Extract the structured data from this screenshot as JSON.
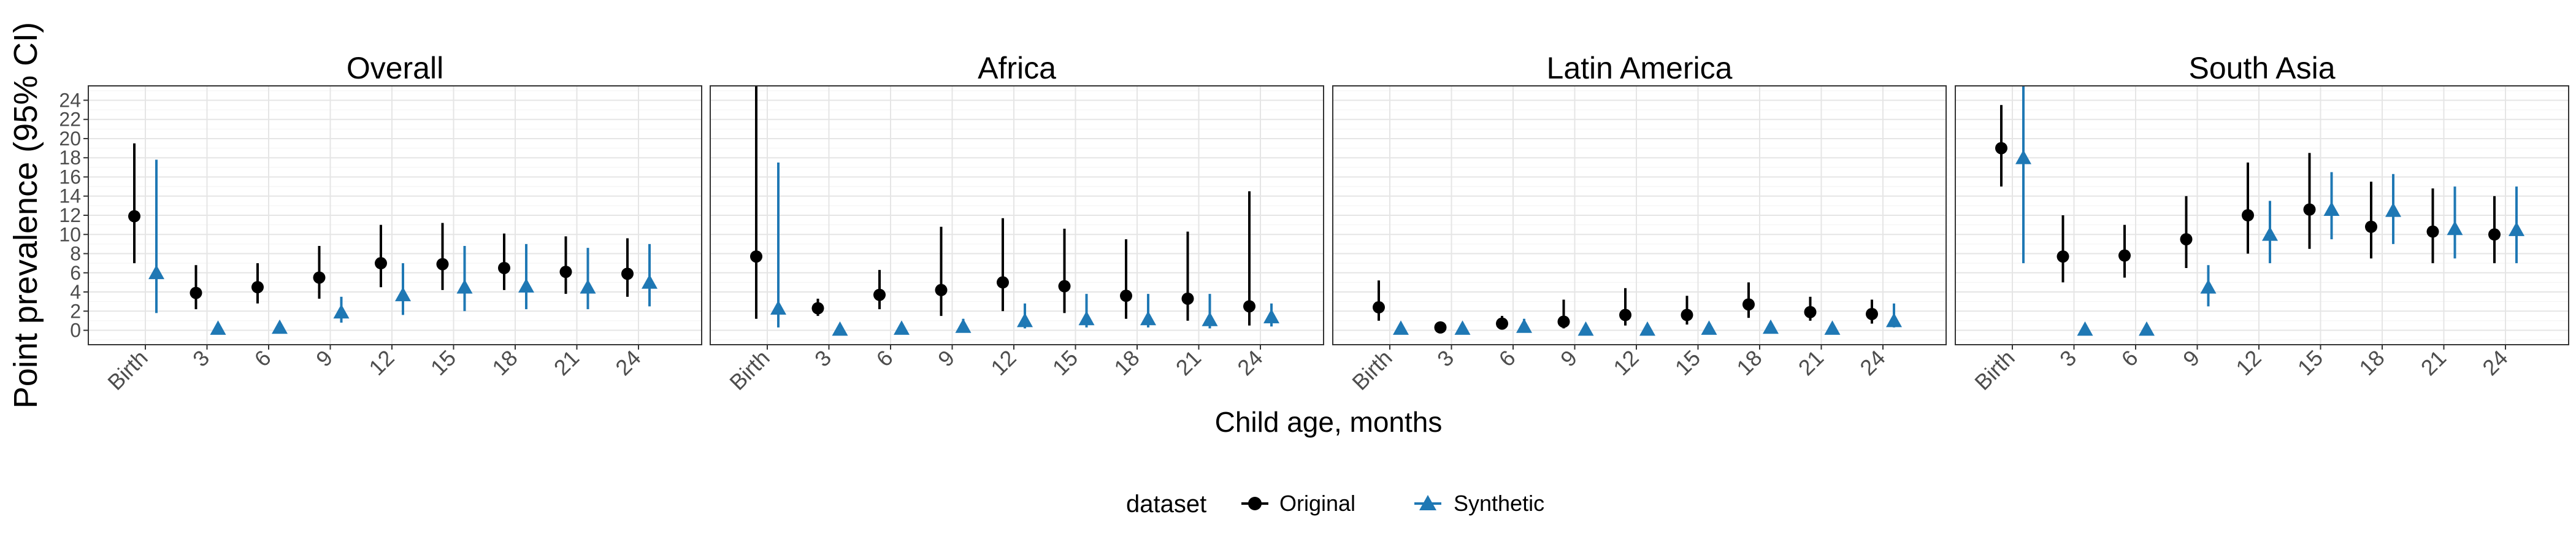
{
  "chart_data": {
    "type": "scatter",
    "ylabel": "Point prevalence (95% CI)",
    "xlabel": "Child age, months",
    "ylim": [
      -1.5,
      25.5
    ],
    "yticks": [
      0,
      2,
      4,
      6,
      8,
      10,
      12,
      14,
      16,
      18,
      20,
      22,
      24
    ],
    "categories": [
      "Birth",
      "3",
      "6",
      "9",
      "12",
      "15",
      "18",
      "21",
      "24"
    ],
    "grid": true,
    "legend": {
      "title": "dataset",
      "placement": "bottom",
      "entries": [
        {
          "name": "Original",
          "color": "#000000",
          "marker": "circle"
        },
        {
          "name": "Synthetic",
          "color": "#1f78b4",
          "marker": "triangle"
        }
      ]
    },
    "panels": [
      {
        "title": "Overall",
        "series": [
          {
            "name": "Original",
            "values": [
              11.9,
              3.9,
              4.5,
              5.5,
              7.0,
              6.9,
              6.5,
              6.1,
              5.9
            ],
            "lower": [
              7.0,
              2.2,
              2.8,
              3.3,
              4.5,
              4.2,
              4.2,
              3.8,
              3.5
            ],
            "upper": [
              19.5,
              6.8,
              7.0,
              8.8,
              11.0,
              11.2,
              10.1,
              9.8,
              9.6
            ]
          },
          {
            "name": "Synthetic",
            "values": [
              6.0,
              0.2,
              0.3,
              1.9,
              3.7,
              4.5,
              4.6,
              4.5,
              5.0
            ],
            "lower": [
              1.8,
              0.0,
              0.0,
              0.8,
              1.6,
              2.0,
              2.2,
              2.2,
              2.5
            ],
            "upper": [
              17.8,
              0.5,
              0.6,
              3.5,
              7.0,
              8.8,
              9.0,
              8.6,
              9.0
            ]
          }
        ]
      },
      {
        "title": "Africa",
        "series": [
          {
            "name": "Original",
            "values": [
              7.7,
              2.3,
              3.7,
              4.2,
              5.0,
              4.6,
              3.6,
              3.3,
              2.5
            ],
            "lower": [
              1.2,
              1.5,
              2.2,
              1.5,
              2.0,
              1.8,
              1.2,
              1.0,
              0.5
            ],
            "upper": [
              25.5,
              3.3,
              6.3,
              10.8,
              11.7,
              10.6,
              9.5,
              10.3,
              14.5
            ]
          },
          {
            "name": "Synthetic",
            "values": [
              2.3,
              0.1,
              0.2,
              0.4,
              1.0,
              1.2,
              1.2,
              1.1,
              1.4
            ],
            "lower": [
              0.3,
              0.0,
              0.0,
              0.0,
              0.2,
              0.3,
              0.3,
              0.2,
              0.4
            ],
            "upper": [
              17.5,
              0.4,
              0.6,
              1.2,
              2.8,
              3.8,
              3.8,
              3.8,
              2.8
            ]
          }
        ]
      },
      {
        "title": "Latin America",
        "series": [
          {
            "name": "Original",
            "values": [
              2.4,
              0.3,
              0.7,
              0.9,
              1.6,
              1.6,
              2.7,
              1.9,
              1.7
            ],
            "lower": [
              1.0,
              0.0,
              0.2,
              0.2,
              0.5,
              0.6,
              1.3,
              1.0,
              0.7
            ],
            "upper": [
              5.2,
              0.8,
              1.5,
              3.2,
              4.4,
              3.6,
              5.0,
              3.5,
              3.2
            ]
          },
          {
            "name": "Synthetic",
            "values": [
              0.2,
              0.2,
              0.4,
              0.1,
              0.1,
              0.2,
              0.3,
              0.2,
              1.0
            ],
            "lower": [
              0.0,
              0.0,
              0.0,
              0.0,
              0.0,
              0.0,
              0.0,
              0.0,
              0.3
            ],
            "upper": [
              0.8,
              0.6,
              1.2,
              0.5,
              0.6,
              0.6,
              0.8,
              0.8,
              2.8
            ]
          }
        ]
      },
      {
        "title": "South Asia",
        "series": [
          {
            "name": "Original",
            "values": [
              19.0,
              7.7,
              7.8,
              9.5,
              12.0,
              12.6,
              10.8,
              10.3,
              10.0
            ],
            "lower": [
              15.0,
              5.0,
              5.5,
              6.5,
              8.0,
              8.5,
              7.5,
              7.0,
              7.0
            ],
            "upper": [
              23.5,
              12.0,
              11.0,
              14.0,
              17.5,
              18.5,
              15.5,
              14.8,
              14.0
            ]
          },
          {
            "name": "Synthetic",
            "values": [
              18.0,
              0.1,
              0.1,
              4.5,
              10.0,
              12.6,
              12.5,
              10.6,
              10.5
            ],
            "lower": [
              7.0,
              0.0,
              0.0,
              2.5,
              7.0,
              9.5,
              9.0,
              7.5,
              7.0
            ],
            "upper": [
              25.5,
              0.4,
              0.4,
              6.8,
              13.5,
              16.5,
              16.3,
              15.0,
              15.0
            ]
          }
        ]
      }
    ]
  }
}
